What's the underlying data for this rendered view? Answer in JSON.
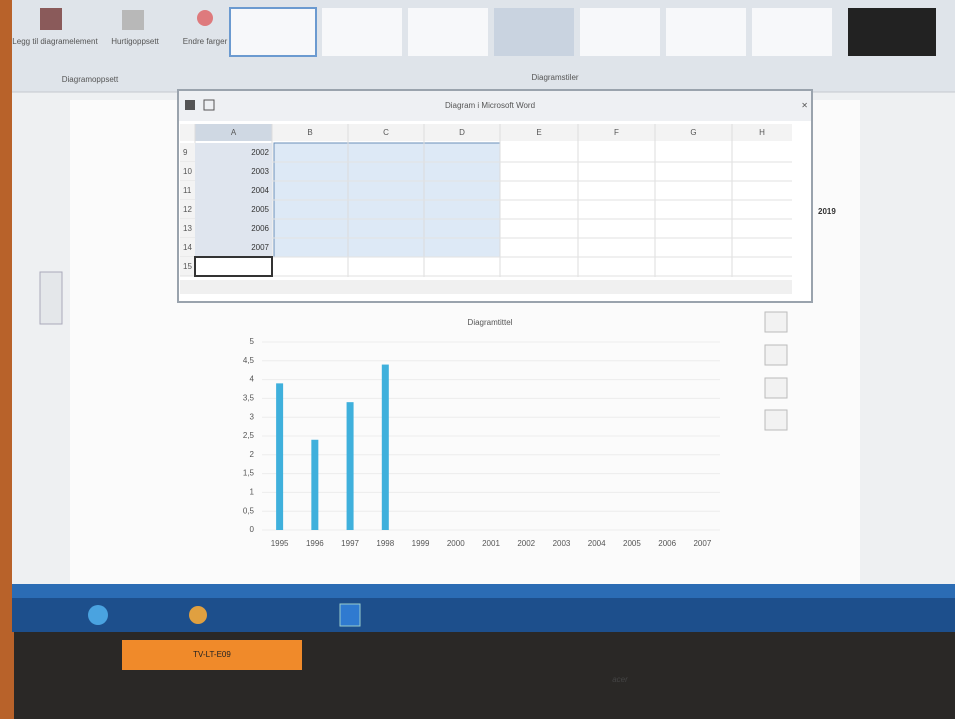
{
  "ribbon": {
    "buttons": [
      "Legg til diagramelement",
      "Hurtigoppsett",
      "Endre farger"
    ],
    "groups": [
      "Diagramoppsett",
      "Diagramstiler"
    ]
  },
  "sheet": {
    "title": "Diagram i Microsoft Word",
    "columns": [
      "A",
      "B",
      "C",
      "D",
      "E",
      "F",
      "G",
      "H"
    ],
    "row_numbers": [
      9,
      10,
      11,
      12,
      13,
      14,
      15
    ],
    "column_a": [
      2002,
      2003,
      2004,
      2005,
      2006,
      2007
    ]
  },
  "document": {
    "heading_fragment": "2019"
  },
  "chart_data": {
    "type": "bar",
    "title": "Diagramtittel",
    "categories": [
      "1995",
      "1996",
      "1997",
      "1998",
      "1999",
      "2000",
      "2001",
      "2002",
      "2003",
      "2004",
      "2005",
      "2006",
      "2007"
    ],
    "values": [
      3.9,
      2.4,
      3.4,
      4.4,
      null,
      null,
      null,
      null,
      null,
      null,
      null,
      null,
      null
    ],
    "color": "#3fb0dc",
    "ylim": [
      0,
      5
    ],
    "yticks": [
      0,
      {
        "value": 0.5,
        "label": "0,5"
      },
      1,
      {
        "value": 1.5,
        "label": "1,5"
      },
      2,
      {
        "value": 2.5,
        "label": "2,5"
      },
      3,
      {
        "value": 3.5,
        "label": "3,5"
      },
      4,
      {
        "value": 4.5,
        "label": "4,5"
      },
      5
    ],
    "grid": true
  },
  "laptop": {
    "label": "TV-LT-E09",
    "brand": "acer"
  }
}
